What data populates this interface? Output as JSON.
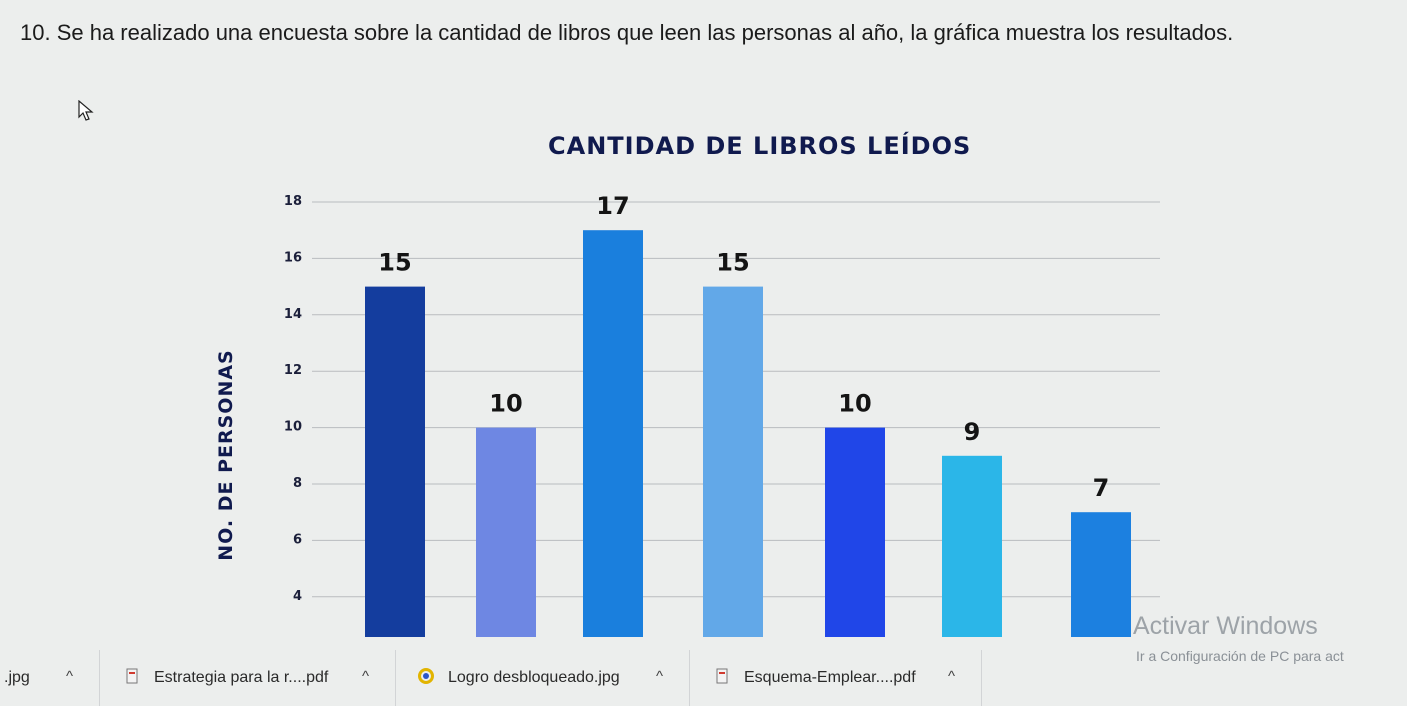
{
  "question": {
    "text": "10. Se ha realizado una encuesta sobre la cantidad de libros que leen las personas al año, la gráfica muestra los resultados."
  },
  "chart_data": {
    "type": "bar",
    "title": "CANTIDAD DE LIBROS LEÍDOS",
    "ylabel": "NO. DE PERSONAS",
    "xlabel": "",
    "categories": [
      "",
      "",
      "",
      "",
      "",
      "",
      ""
    ],
    "values": [
      15,
      10,
      17,
      15,
      10,
      9,
      7
    ],
    "colors": [
      "#143d9e",
      "#6e87e3",
      "#1a7fdd",
      "#62a8e8",
      "#2046e8",
      "#2bb6e8",
      "#1c80e0"
    ],
    "yticks": [
      4,
      6,
      8,
      10,
      12,
      14,
      16,
      18
    ],
    "ylim": [
      4,
      18
    ],
    "grid": true,
    "data_labels": true
  },
  "watermark": {
    "title": "Activar Windows",
    "subtitle": "Ir a Configuración de PC para act"
  },
  "downloads": [
    {
      "label": ".jpg",
      "icon": "image-file-icon",
      "chevron": "^"
    },
    {
      "label": "Estrategia para la r....pdf",
      "icon": "pdf-file-icon",
      "chevron": "^"
    },
    {
      "label": "Logro desbloqueado.jpg",
      "icon": "image-file-icon",
      "chevron": "^"
    },
    {
      "label": "Esquema-Emplear....pdf",
      "icon": "pdf-file-icon",
      "chevron": "^"
    }
  ]
}
